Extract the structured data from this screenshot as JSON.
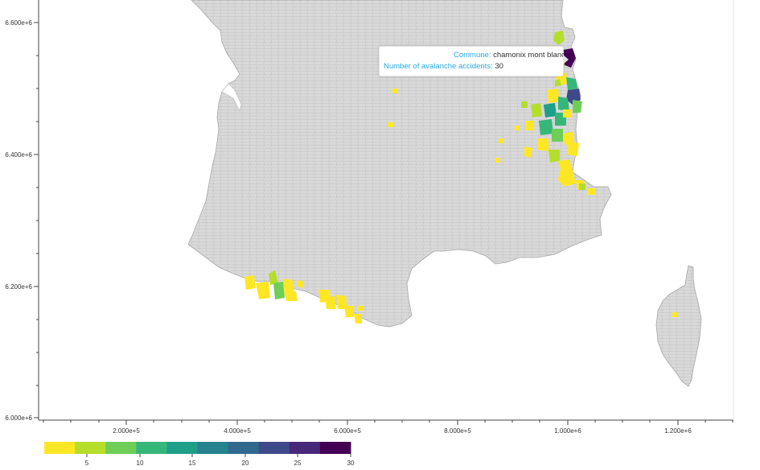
{
  "map": {
    "y_axis_ticks": [
      "6.600e+6",
      "6.400e+6",
      "6.200e+6",
      "6.000e+6"
    ],
    "x_axis_ticks": [
      "2.000e+5",
      "4.000e+5",
      "6.000e+5",
      "8.000e+5",
      "1.000e+6",
      "1.200e+6"
    ],
    "base_color": "#d9d9d9",
    "border_color": "#b5b5b5"
  },
  "colorbar": {
    "colors": [
      "#fde725",
      "#b5de2b",
      "#6ece58",
      "#35b779",
      "#1f9e89",
      "#26828e",
      "#31688e",
      "#3e4989",
      "#482878",
      "#440154"
    ],
    "labels": [
      "5",
      "10",
      "15",
      "20",
      "25",
      "30"
    ],
    "range": [
      0,
      30
    ]
  },
  "tooltip": {
    "commune_key": "Commune:",
    "commune_value": "chamonix mont blanc",
    "accidents_key": "Number of avalanche accidents:",
    "accidents_value": "30"
  }
}
